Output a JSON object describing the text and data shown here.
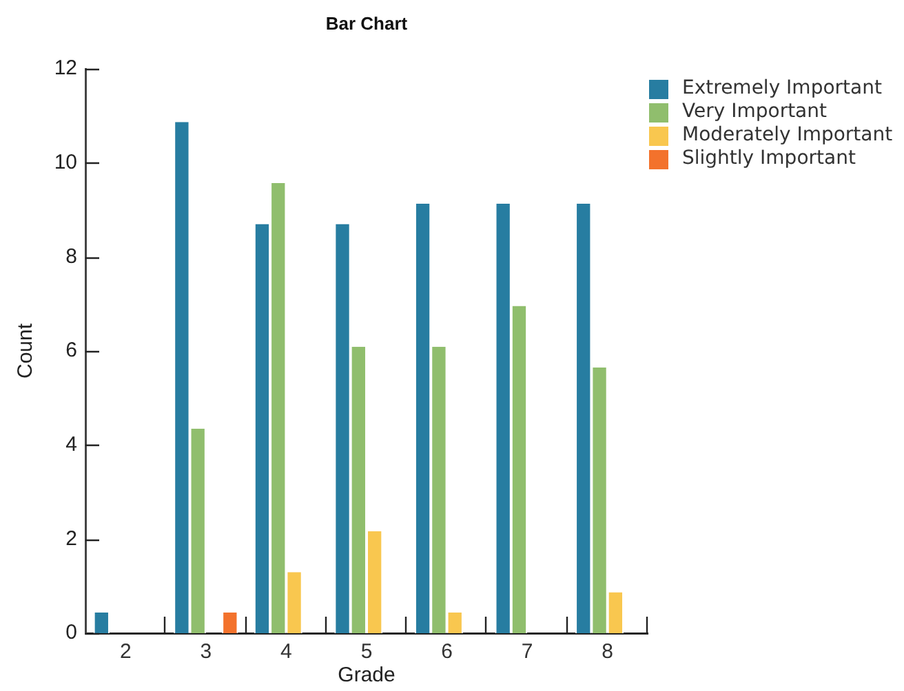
{
  "chart_data": {
    "type": "bar",
    "title": "Bar Chart",
    "xlabel": "Grade",
    "ylabel": "Count",
    "categories": [
      "2",
      "3",
      "4",
      "5",
      "6",
      "7",
      "8"
    ],
    "series": [
      {
        "name": "Extremely Important",
        "color": "#277da1",
        "values": [
          0.44,
          10.87,
          8.7,
          8.7,
          9.13,
          9.13,
          9.13
        ]
      },
      {
        "name": "Very Important",
        "color": "#90be6d",
        "values": [
          null,
          4.35,
          9.57,
          6.09,
          6.09,
          6.96,
          5.65
        ]
      },
      {
        "name": "Moderately Important",
        "color": "#f9c74f",
        "values": [
          null,
          null,
          1.3,
          2.17,
          0.44,
          null,
          0.87
        ]
      },
      {
        "name": "Slightly Important",
        "color": "#f3722c",
        "values": [
          null,
          0.44,
          null,
          null,
          null,
          null,
          null
        ]
      }
    ],
    "ylim": [
      0,
      12
    ],
    "yticks": [
      0,
      2,
      4,
      6,
      8,
      10,
      12
    ],
    "grid": false,
    "legend": "top right"
  }
}
